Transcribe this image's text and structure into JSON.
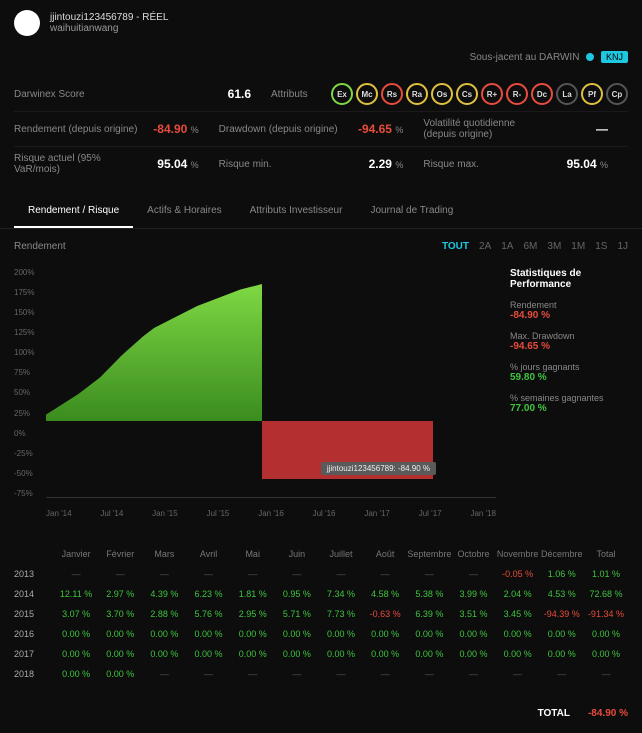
{
  "header": {
    "username": "jjintouzi123456789 - RÉEL",
    "subname": "waihuitianwang"
  },
  "subjacent": {
    "label": "Sous-jacent au DARWIN",
    "tag": "KNJ"
  },
  "metrics": {
    "score_label": "Darwinex Score",
    "score": "61.6",
    "attrs_label": "Attributs",
    "badges": [
      {
        "t": "Ex",
        "c": "#7fd843"
      },
      {
        "t": "Mc",
        "c": "#e0c040"
      },
      {
        "t": "Rs",
        "c": "#e74c3c"
      },
      {
        "t": "Ra",
        "c": "#e0c040"
      },
      {
        "t": "Os",
        "c": "#e0c040"
      },
      {
        "t": "Cs",
        "c": "#e0c040"
      },
      {
        "t": "R+",
        "c": "#e74c3c"
      },
      {
        "t": "R-",
        "c": "#e74c3c"
      },
      {
        "t": "Dc",
        "c": "#e74c3c"
      },
      {
        "t": "La",
        "c": "#555"
      },
      {
        "t": "Pf",
        "c": "#e0c040"
      },
      {
        "t": "Cp",
        "c": "#555"
      }
    ],
    "rend_label": "Rendement (depuis origine)",
    "rend": "-84.90",
    "rend_unit": "%",
    "dd_label": "Drawdown (depuis origine)",
    "dd": "-94.65",
    "dd_unit": "%",
    "vol_label": "Volatilité quotidienne (depuis origine)",
    "vol": "—",
    "risk_label": "Risque actuel (95% VaR/mois)",
    "risk": "95.04",
    "risk_unit": "%",
    "rmin_label": "Risque min.",
    "rmin": "2.29",
    "rmin_unit": "%",
    "rmax_label": "Risque max.",
    "rmax": "95.04",
    "rmax_unit": "%"
  },
  "tabs": [
    "Rendement / Risque",
    "Actifs & Horaires",
    "Attributs Investisseur",
    "Journal de Trading"
  ],
  "active_tab": 0,
  "sublabel": "Rendement",
  "ranges": [
    "TOUT",
    "2A",
    "1A",
    "6M",
    "3M",
    "1M",
    "1S",
    "1J"
  ],
  "active_range": 0,
  "chart": {
    "yticks": [
      "200%",
      "175%",
      "150%",
      "125%",
      "100%",
      "75%",
      "50%",
      "25%",
      "0%",
      "-25%",
      "-50%",
      "-75%"
    ],
    "xticks": [
      "Jan '14",
      "Jul '14",
      "Jan '15",
      "Jul '15",
      "Jan '16",
      "Jul '16",
      "Jan '17",
      "Jul '17",
      "Jan '18"
    ],
    "tooltip": "jjintouzi123456789: -84.90 %"
  },
  "stats": {
    "title": "Statistiques de Performance",
    "items": [
      {
        "label": "Rendement",
        "val": "-84.90 %",
        "cls": "neg"
      },
      {
        "label": "Max. Drawdown",
        "val": "-94.65 %",
        "cls": "neg"
      },
      {
        "label": "% jours gagnants",
        "val": "59.80 %",
        "cls": "pos"
      },
      {
        "label": "% semaines gagnantes",
        "val": "77.00 %",
        "cls": "pos"
      }
    ]
  },
  "table": {
    "months": [
      "Janvier",
      "Février",
      "Mars",
      "Avril",
      "Mai",
      "Juin",
      "Juillet",
      "Août",
      "Septembre",
      "Octobre",
      "Novembre",
      "Décembre",
      "Total"
    ],
    "rows": [
      {
        "year": "2013",
        "cells": [
          null,
          null,
          null,
          null,
          null,
          null,
          null,
          null,
          null,
          null,
          {
            "v": "-0.05 %",
            "c": "neg"
          },
          {
            "v": "1.06 %",
            "c": "pos"
          },
          {
            "v": "1.01 %",
            "c": "pos"
          }
        ]
      },
      {
        "year": "2014",
        "cells": [
          {
            "v": "12.11 %",
            "c": "pos"
          },
          {
            "v": "2.97 %",
            "c": "pos"
          },
          {
            "v": "4.39 %",
            "c": "pos"
          },
          {
            "v": "6.23 %",
            "c": "pos"
          },
          {
            "v": "1.81 %",
            "c": "pos"
          },
          {
            "v": "0.95 %",
            "c": "pos"
          },
          {
            "v": "7.34 %",
            "c": "pos"
          },
          {
            "v": "4.58 %",
            "c": "pos"
          },
          {
            "v": "5.38 %",
            "c": "pos"
          },
          {
            "v": "3.99 %",
            "c": "pos"
          },
          {
            "v": "2.04 %",
            "c": "pos"
          },
          {
            "v": "4.53 %",
            "c": "pos"
          },
          {
            "v": "72.68 %",
            "c": "pos"
          }
        ]
      },
      {
        "year": "2015",
        "cells": [
          {
            "v": "3.07 %",
            "c": "pos"
          },
          {
            "v": "3.70 %",
            "c": "pos"
          },
          {
            "v": "2.88 %",
            "c": "pos"
          },
          {
            "v": "5.76 %",
            "c": "pos"
          },
          {
            "v": "2.95 %",
            "c": "pos"
          },
          {
            "v": "5.71 %",
            "c": "pos"
          },
          {
            "v": "7.73 %",
            "c": "pos"
          },
          {
            "v": "-0.63 %",
            "c": "neg"
          },
          {
            "v": "6.39 %",
            "c": "pos"
          },
          {
            "v": "3.51 %",
            "c": "pos"
          },
          {
            "v": "3.45 %",
            "c": "pos"
          },
          {
            "v": "-94.39 %",
            "c": "neg"
          },
          {
            "v": "-91.34 %",
            "c": "neg"
          }
        ]
      },
      {
        "year": "2016",
        "cells": [
          {
            "v": "0.00 %",
            "c": "pos"
          },
          {
            "v": "0.00 %",
            "c": "pos"
          },
          {
            "v": "0.00 %",
            "c": "pos"
          },
          {
            "v": "0.00 %",
            "c": "pos"
          },
          {
            "v": "0.00 %",
            "c": "pos"
          },
          {
            "v": "0.00 %",
            "c": "pos"
          },
          {
            "v": "0.00 %",
            "c": "pos"
          },
          {
            "v": "0.00 %",
            "c": "pos"
          },
          {
            "v": "0.00 %",
            "c": "pos"
          },
          {
            "v": "0.00 %",
            "c": "pos"
          },
          {
            "v": "0.00 %",
            "c": "pos"
          },
          {
            "v": "0.00 %",
            "c": "pos"
          },
          {
            "v": "0.00 %",
            "c": "pos"
          }
        ]
      },
      {
        "year": "2017",
        "cells": [
          {
            "v": "0.00 %",
            "c": "pos"
          },
          {
            "v": "0.00 %",
            "c": "pos"
          },
          {
            "v": "0.00 %",
            "c": "pos"
          },
          {
            "v": "0.00 %",
            "c": "pos"
          },
          {
            "v": "0.00 %",
            "c": "pos"
          },
          {
            "v": "0.00 %",
            "c": "pos"
          },
          {
            "v": "0.00 %",
            "c": "pos"
          },
          {
            "v": "0.00 %",
            "c": "pos"
          },
          {
            "v": "0.00 %",
            "c": "pos"
          },
          {
            "v": "0.00 %",
            "c": "pos"
          },
          {
            "v": "0.00 %",
            "c": "pos"
          },
          {
            "v": "0.00 %",
            "c": "pos"
          },
          {
            "v": "0.00 %",
            "c": "pos"
          }
        ]
      },
      {
        "year": "2018",
        "cells": [
          {
            "v": "0.00 %",
            "c": "pos"
          },
          {
            "v": "0.00 %",
            "c": "pos"
          },
          null,
          null,
          null,
          null,
          null,
          null,
          null,
          null,
          null,
          null,
          null
        ]
      }
    ]
  },
  "total": {
    "label": "TOTAL",
    "value": "-84.90 %"
  }
}
